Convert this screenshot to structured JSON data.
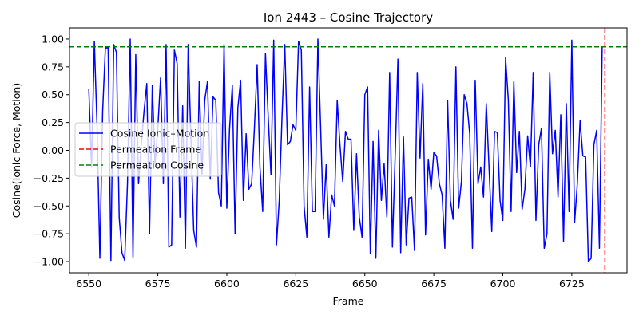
{
  "chart_data": {
    "type": "line",
    "title": "Ion 2443 – Cosine Trajectory",
    "xlabel": "Frame",
    "ylabel": "Cosine(Ionic Force, Motion)",
    "xlim": [
      6543,
      6745
    ],
    "ylim": [
      -1.1,
      1.1
    ],
    "x_ticks": [
      6550,
      6575,
      6600,
      6625,
      6650,
      6675,
      6700,
      6725
    ],
    "y_ticks": [
      -1.0,
      -0.75,
      -0.5,
      -0.25,
      0.0,
      0.25,
      0.5,
      0.75,
      1.0
    ],
    "y_tick_labels": [
      "−1.00",
      "−0.75",
      "−0.50",
      "−0.25",
      "0.00",
      "0.25",
      "0.50",
      "0.75",
      "1.00"
    ],
    "grid": false,
    "legend_position": "center-left",
    "x_start": 6550,
    "series": [
      {
        "name": "Cosine Ionic–Motion",
        "color": "#0000ff",
        "style": "solid",
        "values": [
          0.55,
          -0.15,
          0.98,
          0.2,
          -0.97,
          0.35,
          0.92,
          0.92,
          -0.99,
          0.95,
          0.88,
          -0.6,
          -0.92,
          -0.99,
          -0.3,
          1.0,
          -0.96,
          0.86,
          -0.3,
          0.05,
          0.35,
          0.6,
          -0.75,
          0.58,
          -0.12,
          0.2,
          0.65,
          -0.3,
          0.95,
          -0.87,
          -0.85,
          0.9,
          0.78,
          -0.6,
          0.4,
          -0.88,
          0.95,
          0.1,
          -0.72,
          -0.87,
          0.62,
          -0.22,
          0.45,
          0.62,
          -0.26,
          0.48,
          0.45,
          -0.38,
          -0.5,
          0.95,
          -0.52,
          0.2,
          0.58,
          -0.75,
          0.38,
          0.63,
          -0.45,
          0.15,
          -0.35,
          -0.3,
          0.2,
          0.77,
          -0.15,
          -0.55,
          0.87,
          0.3,
          -0.22,
          0.99,
          -0.85,
          -0.45,
          0.3,
          0.95,
          0.05,
          0.08,
          0.23,
          0.18,
          0.98,
          0.9,
          -0.5,
          -0.78,
          0.57,
          -0.55,
          -0.55,
          1.0,
          0.2,
          -0.62,
          -0.13,
          -0.78,
          -0.4,
          -0.5,
          0.45,
          0.05,
          -0.28,
          0.17,
          0.1,
          0.1,
          -0.72,
          -0.03,
          -0.6,
          -0.78,
          0.5,
          0.57,
          -0.93,
          0.08,
          -0.97,
          0.18,
          -0.45,
          -0.12,
          -0.6,
          0.7,
          -0.87,
          -0.05,
          0.82,
          -0.92,
          0.12,
          -0.85,
          -0.43,
          -0.42,
          -0.9,
          0.7,
          -0.07,
          0.6,
          -0.76,
          -0.08,
          -0.35,
          -0.02,
          -0.05,
          -0.3,
          -0.4,
          -0.88,
          0.45,
          -0.45,
          -0.62,
          0.75,
          -0.52,
          -0.28,
          0.5,
          0.42,
          0.15,
          -0.88,
          0.63,
          -0.3,
          -0.15,
          -0.42,
          0.42,
          -0.15,
          -0.73,
          0.17,
          0.16,
          -0.45,
          -0.63,
          0.83,
          0.45,
          -0.55,
          0.62,
          -0.2,
          0.17,
          -0.53,
          -0.35,
          0.13,
          -0.15,
          0.7,
          -0.63,
          0.05,
          0.2,
          -0.88,
          -0.75,
          0.7,
          -0.03,
          0.18,
          -0.42,
          0.32,
          -0.82,
          0.42,
          -0.55,
          0.99,
          -0.65,
          -0.3,
          0.27,
          -0.05,
          -0.06,
          -1.0,
          -0.97,
          0.05,
          0.18,
          -0.88,
          0.93
        ]
      },
      {
        "name": "Permeation Frame",
        "color": "#ff0000",
        "style": "dashed",
        "orientation": "vertical",
        "x": 6737
      },
      {
        "name": "Permeation Cosine",
        "color": "#008000",
        "style": "dashed",
        "orientation": "horizontal",
        "y": 0.93
      }
    ]
  }
}
